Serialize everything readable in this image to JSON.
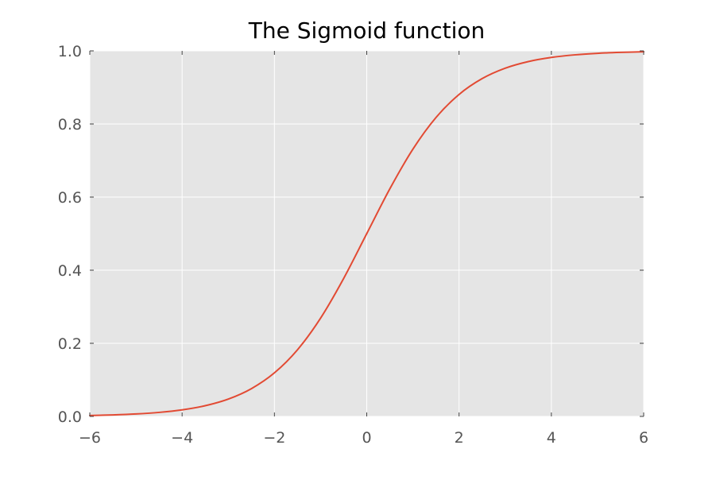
{
  "chart_data": {
    "type": "line",
    "title": "The Sigmoid function",
    "xlabel": "",
    "ylabel": "",
    "xlim": [
      -6,
      6
    ],
    "ylim": [
      0,
      1
    ],
    "xticks": [
      -6,
      -4,
      -2,
      0,
      2,
      4,
      6
    ],
    "xtick_labels": [
      "−6",
      "−4",
      "−2",
      "0",
      "2",
      "4",
      "6"
    ],
    "yticks": [
      0.0,
      0.2,
      0.4,
      0.6,
      0.8,
      1.0
    ],
    "ytick_labels": [
      "0.0",
      "0.2",
      "0.4",
      "0.6",
      "0.8",
      "1.0"
    ],
    "grid": true,
    "series": [
      {
        "color": "#e24a33",
        "x": [
          -6,
          -5.5,
          -5,
          -4.5,
          -4,
          -3.5,
          -3,
          -2.5,
          -2,
          -1.5,
          -1,
          -0.5,
          0,
          0.5,
          1,
          1.5,
          2,
          2.5,
          3,
          3.5,
          4,
          4.5,
          5,
          5.5,
          6
        ],
        "y": [
          0.0025,
          0.0041,
          0.0067,
          0.011,
          0.018,
          0.0293,
          0.0474,
          0.0759,
          0.1192,
          0.1824,
          0.2689,
          0.3775,
          0.5,
          0.6225,
          0.7311,
          0.8176,
          0.8808,
          0.9241,
          0.9526,
          0.9707,
          0.982,
          0.989,
          0.9933,
          0.9959,
          0.9975
        ]
      }
    ],
    "colors": {
      "plot_background": "#e5e5e5",
      "grid": "#ffffff",
      "line": "#e24a33",
      "tick_text": "#555555",
      "title_text": "#000000"
    }
  }
}
